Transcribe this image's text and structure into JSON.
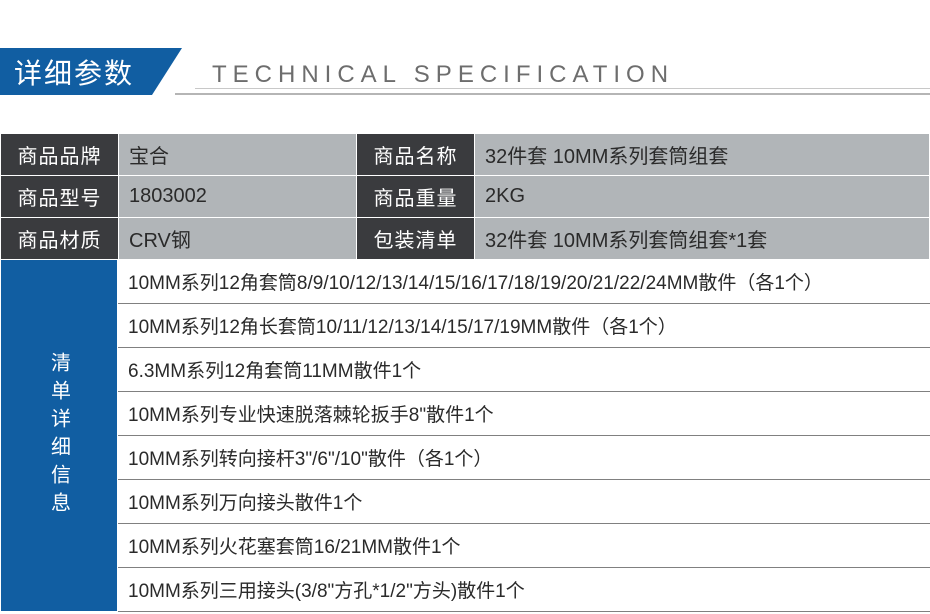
{
  "header": {
    "title_cn": "详细参数",
    "title_en": "TECHNICAL SPECIFICATION"
  },
  "colors": {
    "primary_blue": "#115ea2",
    "dark_label": "#3a3b3e",
    "grey_value": "#b1b5b8",
    "line": "#808080",
    "text_dark": "#2a2a2a",
    "text_light": "#ffffff",
    "sub_text": "#6d6d6d"
  },
  "specs": [
    {
      "label1": "商品品牌",
      "value1": "宝合",
      "label2": "商品名称",
      "value2": "32件套 10MM系列套筒组套"
    },
    {
      "label1": "商品型号",
      "value1": "1803002",
      "label2": "商品重量",
      "value2": "2KG"
    },
    {
      "label1": "商品材质",
      "value1": "CRV钢",
      "label2": "包装清单",
      "value2": "32件套 10MM系列套筒组套*1套"
    }
  ],
  "detail_header": "清单详细信息",
  "details": [
    "10MM系列12角套筒8/9/10/12/13/14/15/16/17/18/19/20/21/22/24MM散件（各1个）",
    "10MM系列12角长套筒10/11/12/13/14/15/17/19MM散件（各1个）",
    "6.3MM系列12角套筒11MM散件1个",
    "10MM系列专业快速脱落棘轮扳手8\"散件1个",
    "10MM系列转向接杆3\"/6\"/10\"散件（各1个）",
    "10MM系列万向接头散件1个",
    "10MM系列火花塞套筒16/21MM散件1个",
    "10MM系列三用接头(3/8\"方孔*1/2\"方头)散件1个"
  ]
}
